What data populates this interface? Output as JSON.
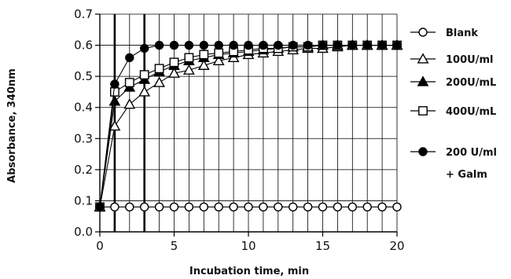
{
  "chart_data": {
    "type": "line",
    "xlabel": "Incubation time, min",
    "ylabel": "Absorbance, 340nm",
    "xlim": [
      0,
      20
    ],
    "ylim": [
      0,
      0.7
    ],
    "xticks": [
      0,
      5,
      10,
      15,
      20
    ],
    "yticks": [
      0.0,
      0.1,
      0.2,
      0.3,
      0.4,
      0.5,
      0.6,
      0.7
    ],
    "ytick_labels": [
      "0.0",
      "0.1",
      "0.2",
      "0.3",
      "0.4",
      "0.5",
      "0.6",
      "0.7"
    ],
    "grid": "vertical lines at every minute, horizontal lines at every 0.1",
    "highlighted_x": [
      1,
      3
    ],
    "legend_position": "right",
    "series": [
      {
        "name": "Blank",
        "marker": "open-circle",
        "x": [
          0,
          1,
          2,
          3,
          4,
          5,
          6,
          7,
          8,
          9,
          10,
          11,
          12,
          13,
          14,
          15,
          16,
          17,
          18,
          19,
          20
        ],
        "y": [
          0.08,
          0.08,
          0.08,
          0.08,
          0.08,
          0.08,
          0.08,
          0.08,
          0.08,
          0.08,
          0.08,
          0.08,
          0.08,
          0.08,
          0.08,
          0.08,
          0.08,
          0.08,
          0.08,
          0.08,
          0.08
        ]
      },
      {
        "name": "100U/ml",
        "marker": "open-triangle",
        "x": [
          0,
          1,
          2,
          3,
          4,
          5,
          6,
          7,
          8,
          9,
          10,
          11,
          12,
          13,
          14,
          15,
          16,
          17,
          18,
          19,
          20
        ],
        "y": [
          0.08,
          0.34,
          0.41,
          0.45,
          0.48,
          0.51,
          0.52,
          0.535,
          0.55,
          0.56,
          0.57,
          0.575,
          0.58,
          0.585,
          0.59,
          0.59,
          0.595,
          0.6,
          0.6,
          0.6,
          0.6
        ]
      },
      {
        "name": "200U/mL",
        "marker": "filled-triangle",
        "x": [
          0,
          1,
          2,
          3,
          4,
          5,
          6,
          7,
          8,
          9,
          10,
          11,
          12,
          13,
          14,
          15,
          16,
          17,
          18,
          19,
          20
        ],
        "y": [
          0.08,
          0.42,
          0.465,
          0.49,
          0.515,
          0.535,
          0.55,
          0.56,
          0.57,
          0.575,
          0.58,
          0.585,
          0.59,
          0.595,
          0.595,
          0.6,
          0.6,
          0.6,
          0.6,
          0.6,
          0.6
        ]
      },
      {
        "name": "400U/mL",
        "marker": "open-square",
        "x": [
          0,
          1,
          2,
          3,
          4,
          5,
          6,
          7,
          8,
          9,
          10,
          11,
          12,
          13,
          14,
          15,
          16,
          17,
          18,
          19,
          20
        ],
        "y": [
          0.08,
          0.45,
          0.48,
          0.505,
          0.525,
          0.545,
          0.56,
          0.57,
          0.575,
          0.58,
          0.585,
          0.59,
          0.59,
          0.595,
          0.595,
          0.6,
          0.6,
          0.6,
          0.6,
          0.6,
          0.6
        ]
      },
      {
        "name": "200 U/ml + Galm",
        "legend_lines": [
          "200 U/ml",
          "+ Galm"
        ],
        "marker": "filled-circle",
        "x": [
          0,
          1,
          2,
          3,
          4,
          5,
          6,
          7,
          8,
          9,
          10,
          11,
          12,
          13,
          14,
          15,
          16,
          17,
          18,
          19,
          20
        ],
        "y": [
          0.08,
          0.475,
          0.56,
          0.59,
          0.6,
          0.6,
          0.6,
          0.6,
          0.6,
          0.6,
          0.6,
          0.6,
          0.6,
          0.6,
          0.6,
          0.6,
          0.6,
          0.6,
          0.6,
          0.6,
          0.6
        ]
      }
    ]
  }
}
